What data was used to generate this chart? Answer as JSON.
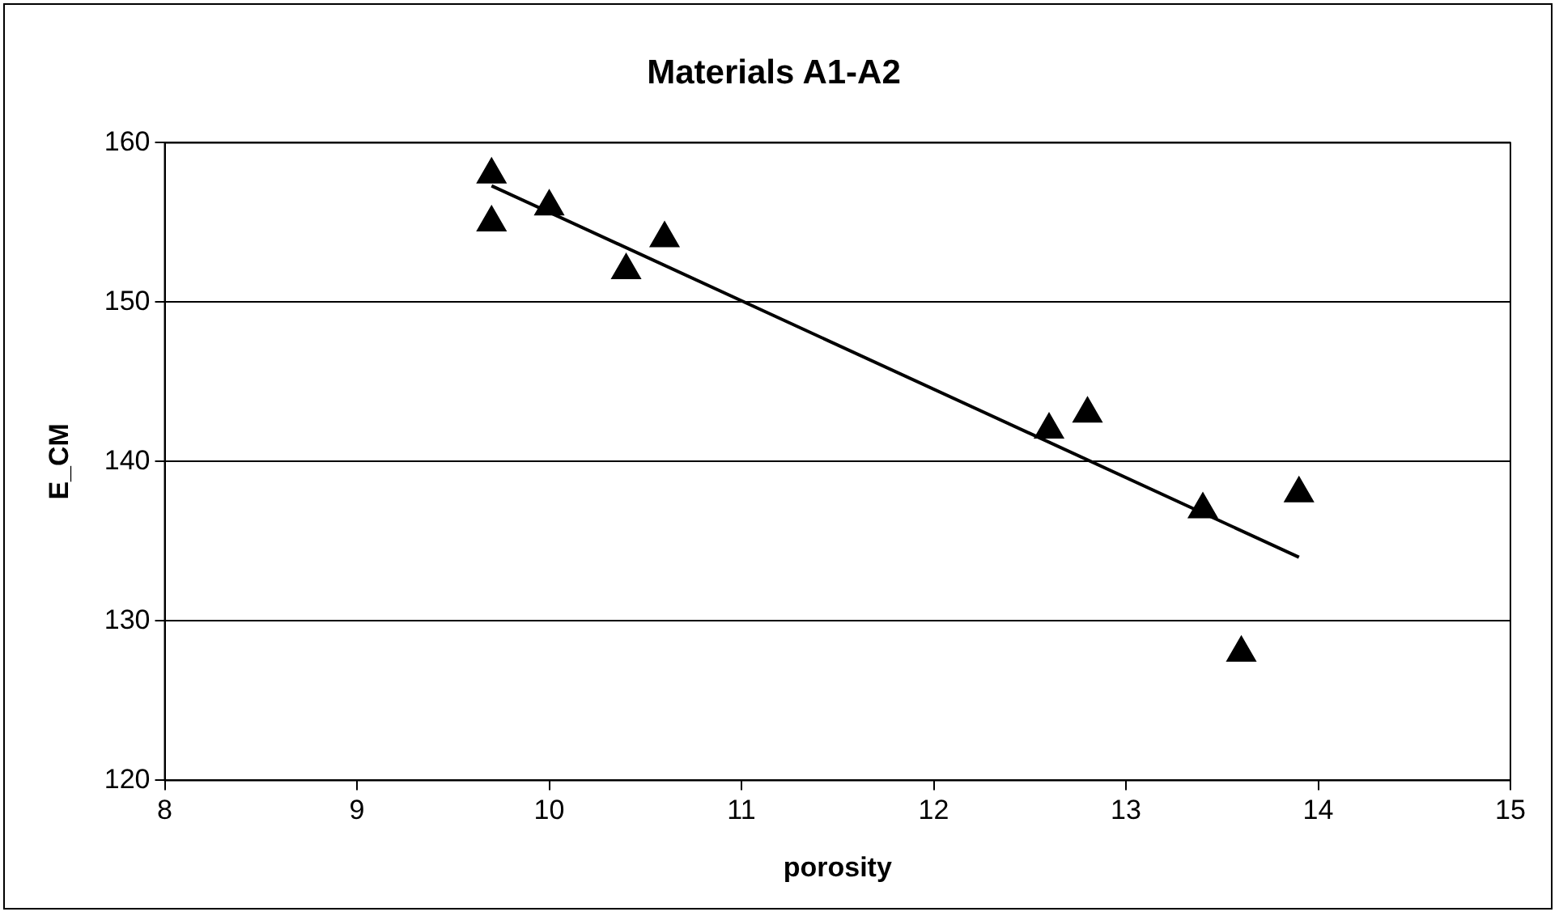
{
  "chart_data": {
    "type": "scatter",
    "title": "Materials A1-A2",
    "xlabel": "porosity",
    "ylabel": "E_CM",
    "xlim": [
      8,
      15
    ],
    "xticks": [
      8,
      9,
      10,
      11,
      12,
      13,
      14,
      15
    ],
    "ylim": [
      120,
      160
    ],
    "yticks": [
      120,
      130,
      140,
      150,
      160
    ],
    "grid": "y",
    "marker": "triangle",
    "series": [
      {
        "color": "#000000",
        "x": [
          9.7,
          9.7,
          10.0,
          10.4,
          10.6,
          12.6,
          12.8,
          13.4,
          13.6,
          13.9
        ],
        "values": [
          158,
          155,
          156,
          152,
          154,
          142,
          143,
          137,
          128,
          138
        ]
      },
      {
        "type": "line",
        "marker": "none",
        "color": "#000000",
        "x": [
          9.7,
          13.9
        ],
        "values": [
          157.3,
          134
        ]
      }
    ]
  }
}
